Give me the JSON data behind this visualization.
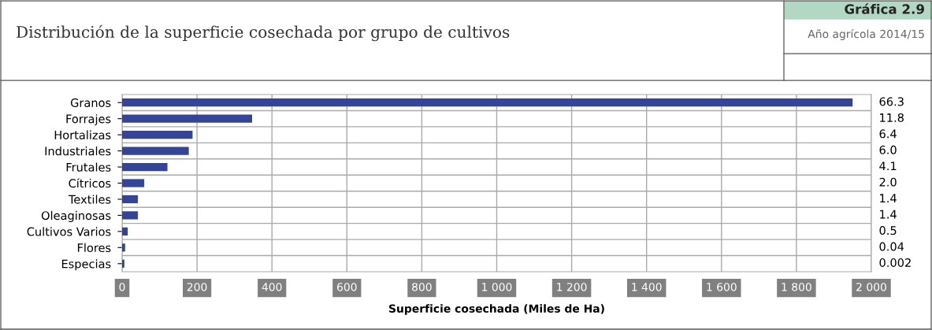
{
  "chart_data": {
    "type": "bar",
    "orientation": "horizontal",
    "title": "Distribución de la superficie cosechada por grupo de cultivos",
    "subtitle": "Año agrícola 2014/15",
    "annotations": [
      "Gráfica 2.9",
      "66.3",
      "11.8",
      "6.4",
      "6.0",
      "4.1",
      "2.0",
      "1.4",
      "1.4",
      "0.5",
      "0.04",
      "0.002"
    ],
    "xlabel": "Superficie cosechada (Miles de Ha)",
    "categories": [
      "Granos",
      "Forrajes",
      "Hortalizas",
      "Industriales",
      "Frutales",
      "Cítricos",
      "Textiles",
      "Oleaginosas",
      "Cultivos Varios",
      "Flores",
      "Especias"
    ],
    "values": [
      1950,
      347,
      188,
      178,
      121,
      59,
      42,
      42,
      15,
      8,
      6
    ],
    "color": "#334499",
    "xlim": [
      0,
      2000
    ],
    "xticks": [
      0,
      200,
      400,
      600,
      800,
      {
        "value": 1000,
        "label": "1 000"
      },
      {
        "value": 1200,
        "label": "1 200"
      },
      {
        "value": 1400,
        "label": "1 400"
      },
      {
        "value": 1600,
        "label": "1 600"
      },
      {
        "value": 1800,
        "label": "1 800"
      },
      {
        "value": 2000,
        "label": "2 000"
      }
    ],
    "grid": true
  }
}
